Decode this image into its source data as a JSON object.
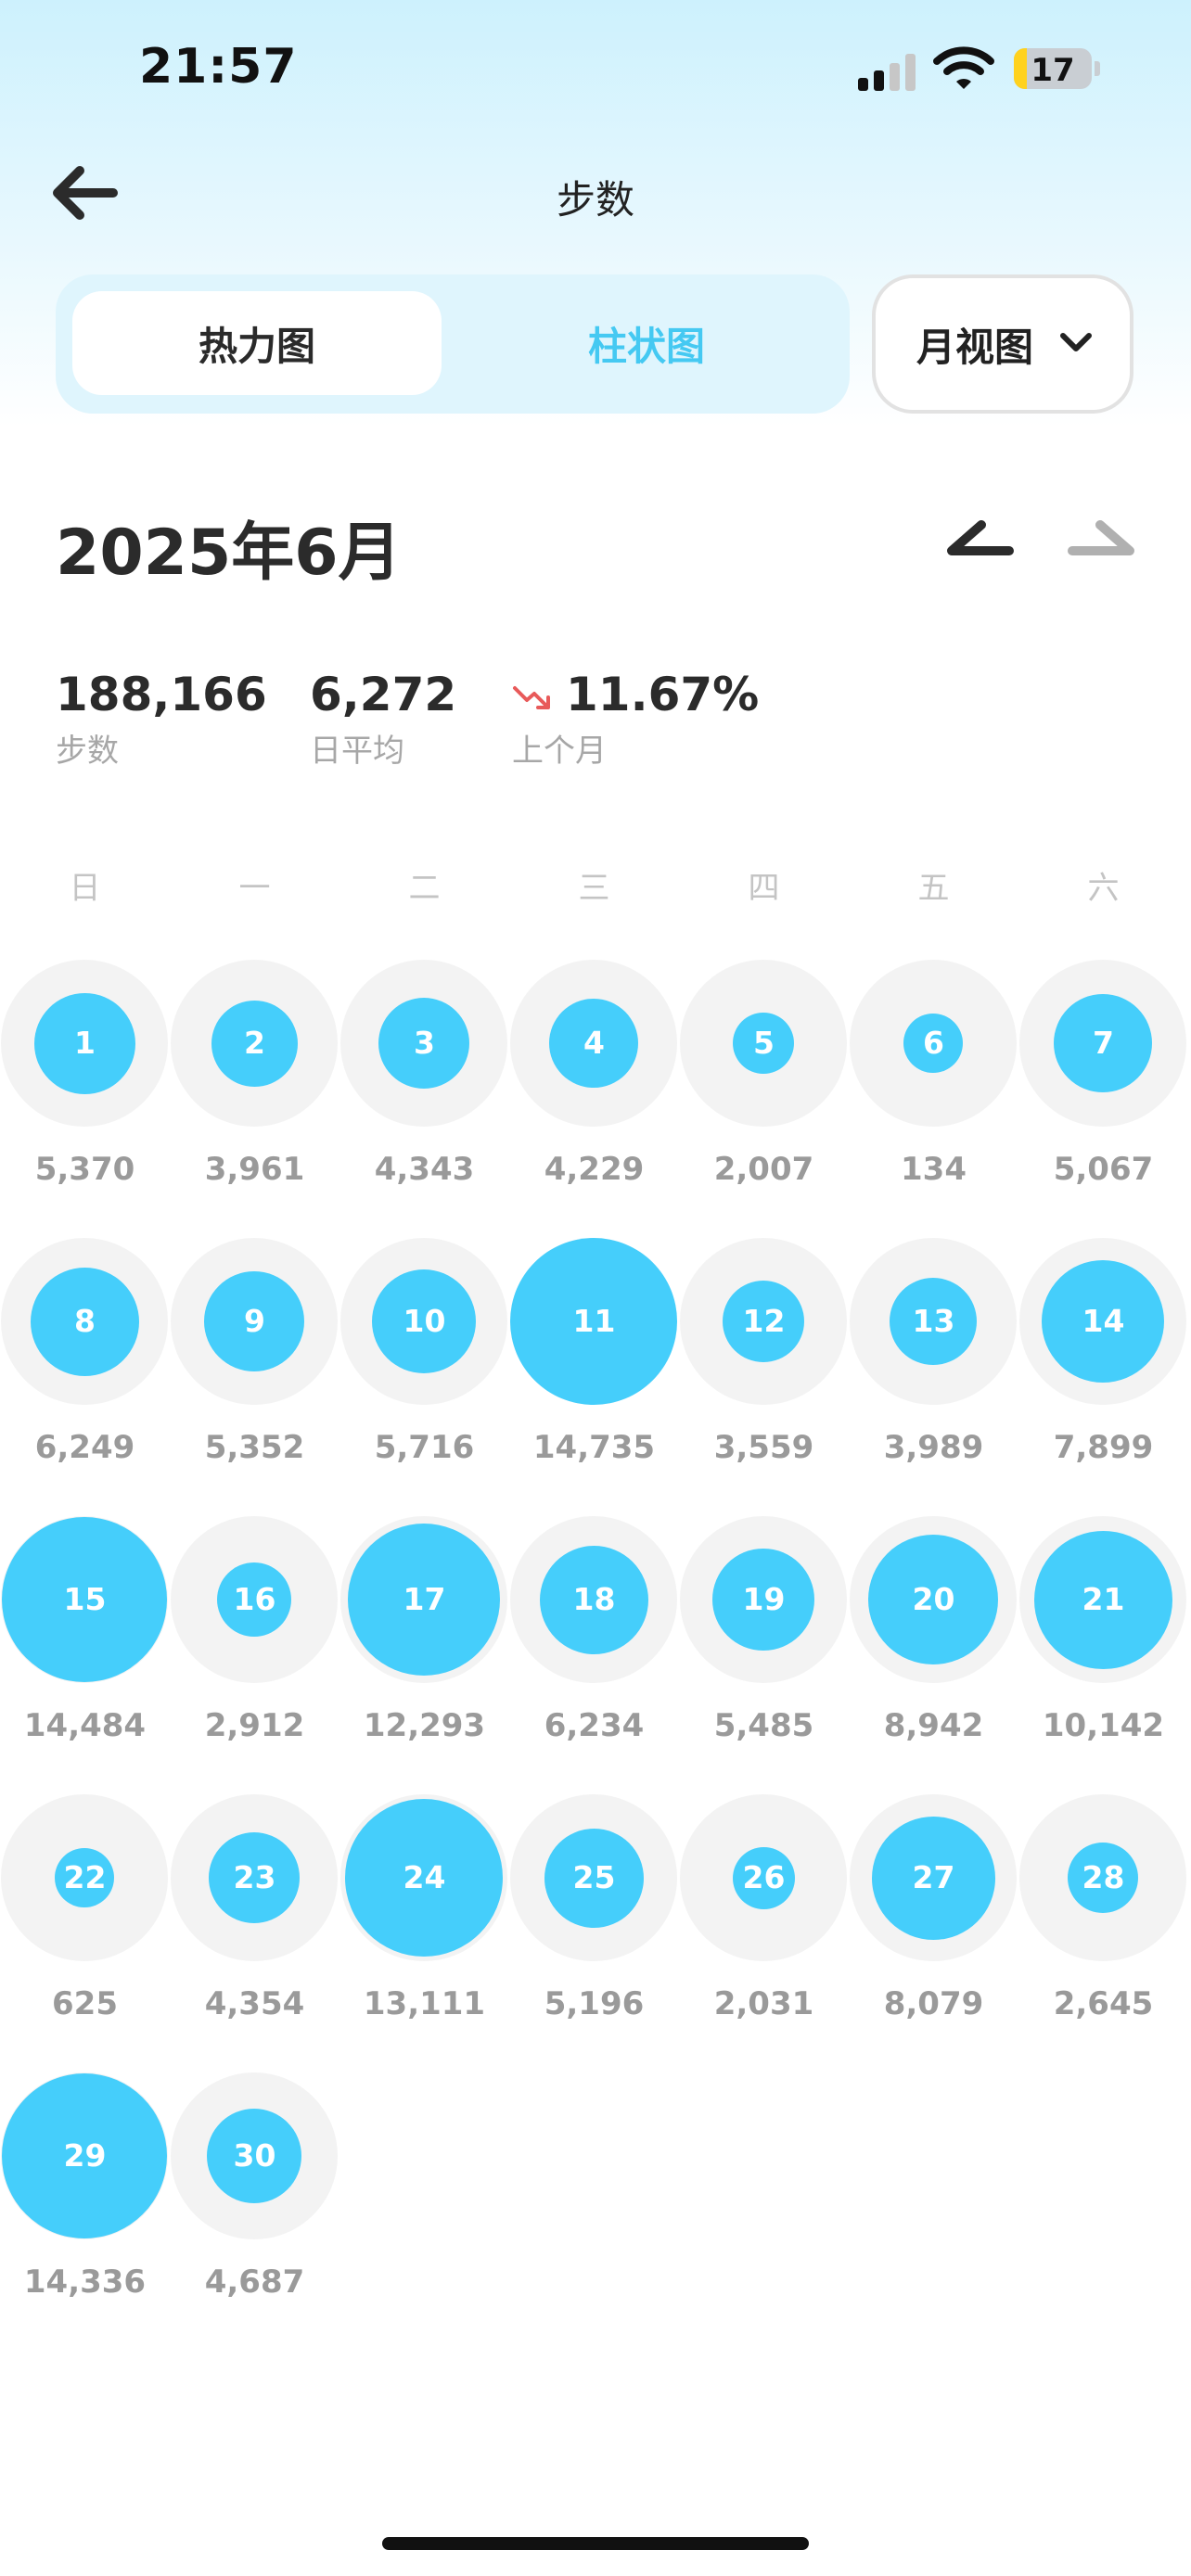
{
  "status_bar": {
    "time": "21:57",
    "battery": "17",
    "battery_level": 0.17
  },
  "header": {
    "title": "步数"
  },
  "segments": {
    "active": "热力图",
    "inactive": "柱状图"
  },
  "view_select": {
    "label": "月视图"
  },
  "month_title": "2025年6月",
  "stats": {
    "total": {
      "value": "188,166",
      "label": "步数"
    },
    "average": {
      "value": "6,272",
      "label": "日平均"
    },
    "change": {
      "value": "11.67%",
      "label": "上个月",
      "direction": "down"
    }
  },
  "weekdays": [
    "日",
    "一",
    "二",
    "三",
    "四",
    "五",
    "六"
  ],
  "colors": {
    "accent": "#45cefb",
    "ring": "#f3f3f3",
    "trend_down": "#e85a5a"
  },
  "icons": {
    "back": "arrow-left-icon",
    "dropdown": "chevron-down-icon",
    "prev": "prev-month-icon",
    "next": "next-month-icon",
    "trend": "trend-down-icon"
  },
  "max_steps": 14735,
  "days": [
    {
      "day": "1",
      "steps": "5,370",
      "value": 5370
    },
    {
      "day": "2",
      "steps": "3,961",
      "value": 3961
    },
    {
      "day": "3",
      "steps": "4,343",
      "value": 4343
    },
    {
      "day": "4",
      "steps": "4,229",
      "value": 4229
    },
    {
      "day": "5",
      "steps": "2,007",
      "value": 2007
    },
    {
      "day": "6",
      "steps": "134",
      "value": 134
    },
    {
      "day": "7",
      "steps": "5,067",
      "value": 5067
    },
    {
      "day": "8",
      "steps": "6,249",
      "value": 6249
    },
    {
      "day": "9",
      "steps": "5,352",
      "value": 5352
    },
    {
      "day": "10",
      "steps": "5,716",
      "value": 5716
    },
    {
      "day": "11",
      "steps": "14,735",
      "value": 14735
    },
    {
      "day": "12",
      "steps": "3,559",
      "value": 3559
    },
    {
      "day": "13",
      "steps": "3,989",
      "value": 3989
    },
    {
      "day": "14",
      "steps": "7,899",
      "value": 7899
    },
    {
      "day": "15",
      "steps": "14,484",
      "value": 14484
    },
    {
      "day": "16",
      "steps": "2,912",
      "value": 2912
    },
    {
      "day": "17",
      "steps": "12,293",
      "value": 12293
    },
    {
      "day": "18",
      "steps": "6,234",
      "value": 6234
    },
    {
      "day": "19",
      "steps": "5,485",
      "value": 5485
    },
    {
      "day": "20",
      "steps": "8,942",
      "value": 8942
    },
    {
      "day": "21",
      "steps": "10,142",
      "value": 10142
    },
    {
      "day": "22",
      "steps": "625",
      "value": 625
    },
    {
      "day": "23",
      "steps": "4,354",
      "value": 4354
    },
    {
      "day": "24",
      "steps": "13,111",
      "value": 13111
    },
    {
      "day": "25",
      "steps": "5,196",
      "value": 5196
    },
    {
      "day": "26",
      "steps": "2,031",
      "value": 2031
    },
    {
      "day": "27",
      "steps": "8,079",
      "value": 8079
    },
    {
      "day": "28",
      "steps": "2,645",
      "value": 2645
    },
    {
      "day": "29",
      "steps": "14,336",
      "value": 14336
    },
    {
      "day": "30",
      "steps": "4,687",
      "value": 4687
    }
  ]
}
